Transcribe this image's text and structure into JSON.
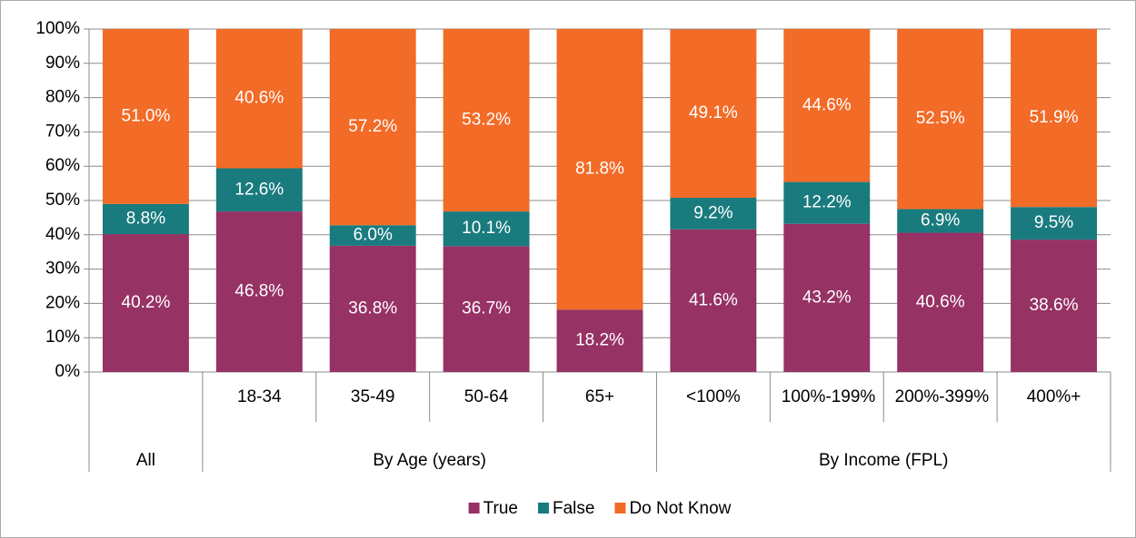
{
  "chart_data": {
    "type": "stacked_bar",
    "groups": [
      {
        "name": "All",
        "categories": [
          null
        ]
      },
      {
        "name": "By Age (years)",
        "categories": [
          "18-34",
          "35-49",
          "50-64",
          "65+"
        ]
      },
      {
        "name": "By Income (FPL)",
        "categories": [
          "<100%",
          "100%-199%",
          "200%-399%",
          "400%+"
        ]
      }
    ],
    "series": [
      {
        "name": "True",
        "color": "#963264",
        "values": [
          40.2,
          46.8,
          36.8,
          36.7,
          18.2,
          41.6,
          43.2,
          40.6,
          38.6
        ],
        "value_labels": [
          "40.2%",
          "46.8%",
          "36.8%",
          "36.7%",
          "18.2%",
          "41.6%",
          "43.2%",
          "40.6%",
          "38.6%"
        ]
      },
      {
        "name": "False",
        "color": "#1a7b7e",
        "values": [
          8.8,
          12.6,
          6.0,
          10.1,
          null,
          9.2,
          12.2,
          6.9,
          9.5
        ],
        "value_labels": [
          "8.8%",
          "12.6%",
          "6.0%",
          "10.1%",
          null,
          "9.2%",
          "12.2%",
          "6.9%",
          "9.5%"
        ]
      },
      {
        "name": "Do Not Know",
        "color": "#f26b27",
        "values": [
          51.0,
          40.6,
          57.2,
          53.2,
          81.8,
          49.1,
          44.6,
          52.5,
          51.9
        ],
        "value_labels": [
          "51.0%",
          "40.6%",
          "57.2%",
          "53.2%",
          "81.8%",
          "49.1%",
          "44.6%",
          "52.5%",
          "51.9%"
        ]
      }
    ],
    "ylim": [
      0,
      100
    ],
    "yticks": [
      {
        "value": 0,
        "label": "0%"
      },
      {
        "value": 10,
        "label": "10%"
      },
      {
        "value": 20,
        "label": "20%"
      },
      {
        "value": 30,
        "label": "30%"
      },
      {
        "value": 40,
        "label": "40%"
      },
      {
        "value": 50,
        "label": "50%"
      },
      {
        "value": 60,
        "label": "60%"
      },
      {
        "value": 70,
        "label": "70%"
      },
      {
        "value": 80,
        "label": "80%"
      },
      {
        "value": 90,
        "label": "90%"
      },
      {
        "value": 100,
        "label": "100%"
      }
    ],
    "grid": true,
    "legend": "bottom"
  }
}
